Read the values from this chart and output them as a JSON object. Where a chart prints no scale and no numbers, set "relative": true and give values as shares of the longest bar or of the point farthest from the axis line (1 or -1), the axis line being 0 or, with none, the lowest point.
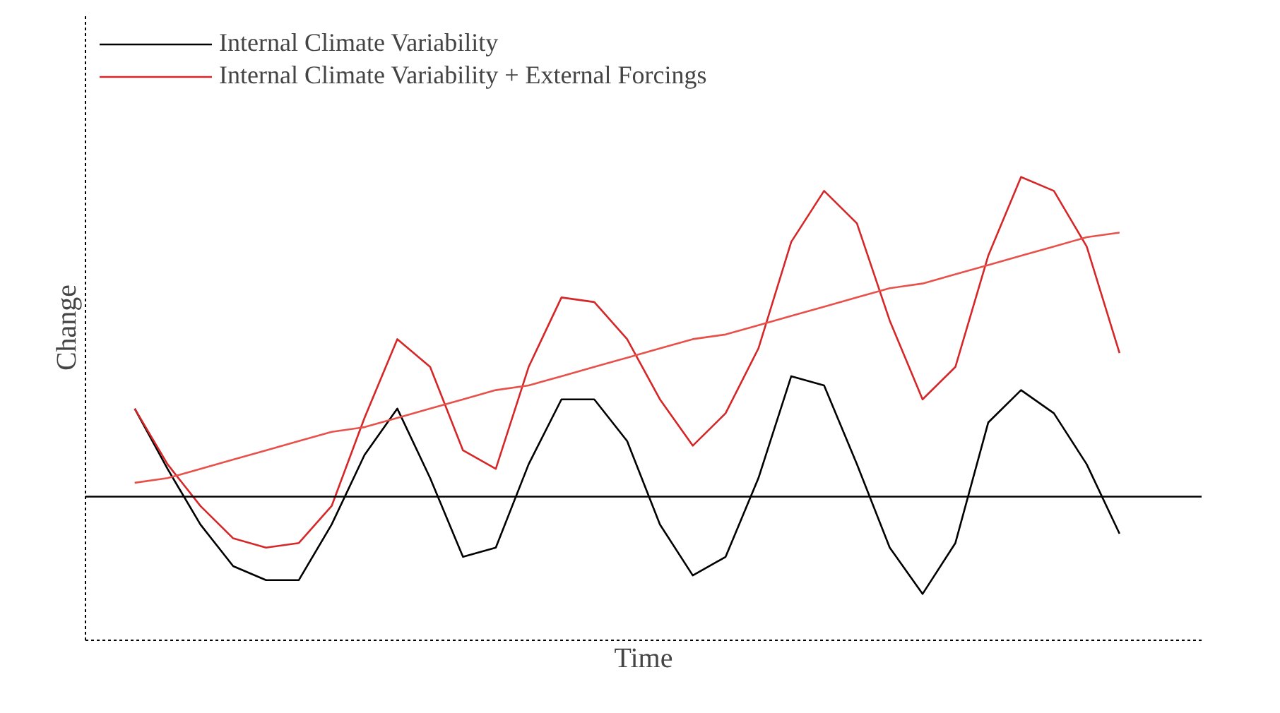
{
  "chart_data": {
    "type": "line",
    "relative": true,
    "xlabel": "Time",
    "ylabel": "Change",
    "legend": "top left",
    "line_style": "solid",
    "categories": [
      null,
      null,
      null,
      null,
      null,
      null,
      null,
      null,
      null,
      null,
      null,
      null,
      null,
      null,
      null,
      null,
      null,
      null,
      null,
      null,
      null,
      null,
      null,
      null,
      null,
      null,
      null,
      null,
      null,
      null,
      null
    ],
    "ref_lines": [
      {
        "axis": "y",
        "value": 0.31,
        "color": "#000000"
      }
    ],
    "series": [
      {
        "name": "Internal Climate Variability",
        "color": "#000000",
        "values": [
          0.5,
          0.37,
          0.25,
          0.16,
          0.13,
          0.13,
          0.25,
          0.4,
          0.5,
          0.35,
          0.18,
          0.2,
          0.38,
          0.52,
          0.52,
          0.43,
          0.25,
          0.14,
          0.18,
          0.35,
          0.57,
          0.55,
          0.38,
          0.2,
          0.1,
          0.21,
          0.47,
          0.54,
          0.49,
          0.38,
          0.23
        ]
      },
      {
        "name": "Internal Climate Variability + External Forcings",
        "color": "#d62728",
        "values": [
          0.5,
          0.38,
          0.29,
          0.22,
          0.2,
          0.21,
          0.29,
          0.48,
          0.65,
          0.59,
          0.41,
          0.37,
          0.59,
          0.74,
          0.73,
          0.65,
          0.52,
          0.42,
          0.49,
          0.63,
          0.86,
          0.97,
          0.9,
          0.69,
          0.52,
          0.59,
          0.83,
          1.0,
          0.97,
          0.85,
          0.62
        ]
      },
      {
        "color": "#e8504a",
        "values": [
          0.34,
          0.35,
          0.37,
          0.39,
          0.41,
          0.43,
          0.45,
          0.46,
          0.48,
          0.5,
          0.52,
          0.54,
          0.55,
          0.57,
          0.59,
          0.61,
          0.63,
          0.65,
          0.66,
          0.68,
          0.7,
          0.72,
          0.74,
          0.76,
          0.77,
          0.79,
          0.81,
          0.83,
          0.85,
          0.87,
          0.88
        ]
      }
    ]
  }
}
